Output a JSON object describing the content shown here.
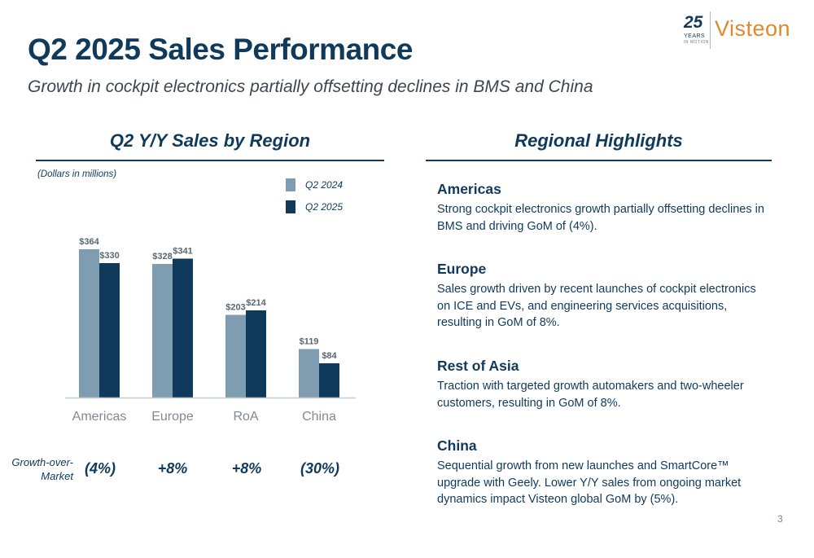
{
  "header": {
    "title": "Q2 2025 Sales Performance",
    "subtitle": "Growth in cockpit electronics partially offsetting declines in BMS and China"
  },
  "logo": {
    "number": "25",
    "years": "YEARS",
    "tagline": "IN MOTION",
    "brand": "Visteon"
  },
  "left_panel": {
    "heading": "Q2 Y/Y Sales by Region",
    "units": "(Dollars in millions)"
  },
  "chart_data": {
    "type": "bar",
    "title": "",
    "xlabel": "",
    "ylabel": "",
    "categories": [
      "Americas",
      "Europe",
      "RoA",
      "China"
    ],
    "series": [
      {
        "name": "Q2 2024",
        "values": [
          364,
          328,
          203,
          119
        ],
        "labels": [
          "$364",
          "$328",
          "$203",
          "$119"
        ],
        "color": "#7f9db1"
      },
      {
        "name": "Q2 2025",
        "values": [
          330,
          341,
          214,
          84
        ],
        "labels": [
          "$330",
          "$341",
          "$214",
          "$84"
        ],
        "color": "#0f3a5c"
      }
    ],
    "ylim": [
      0,
      420
    ],
    "grid": false,
    "legend": "top-right"
  },
  "growth_over_market": {
    "label": "Growth-over-Market",
    "values": [
      "(4%)",
      "+8%",
      "+8%",
      "(30%)"
    ]
  },
  "right_panel": {
    "heading": "Regional Highlights",
    "items": [
      {
        "title": "Americas",
        "text": "Strong cockpit electronics growth partially offsetting declines in BMS and driving GoM of (4%)."
      },
      {
        "title": "Europe",
        "text": "Sales growth driven by recent launches of cockpit electronics on ICE and EVs, and engineering services acquisitions, resulting in GoM of 8%."
      },
      {
        "title": "Rest of Asia",
        "text": "Traction with targeted growth automakers and two-wheeler customers, resulting in GoM of 8%."
      },
      {
        "title": "China",
        "text": "Sequential growth from new launches and SmartCore™ upgrade with Geely. Lower Y/Y sales from ongoing market dynamics impact Visteon global GoM by (5%)."
      }
    ]
  },
  "footer": {
    "page_number": "3"
  }
}
